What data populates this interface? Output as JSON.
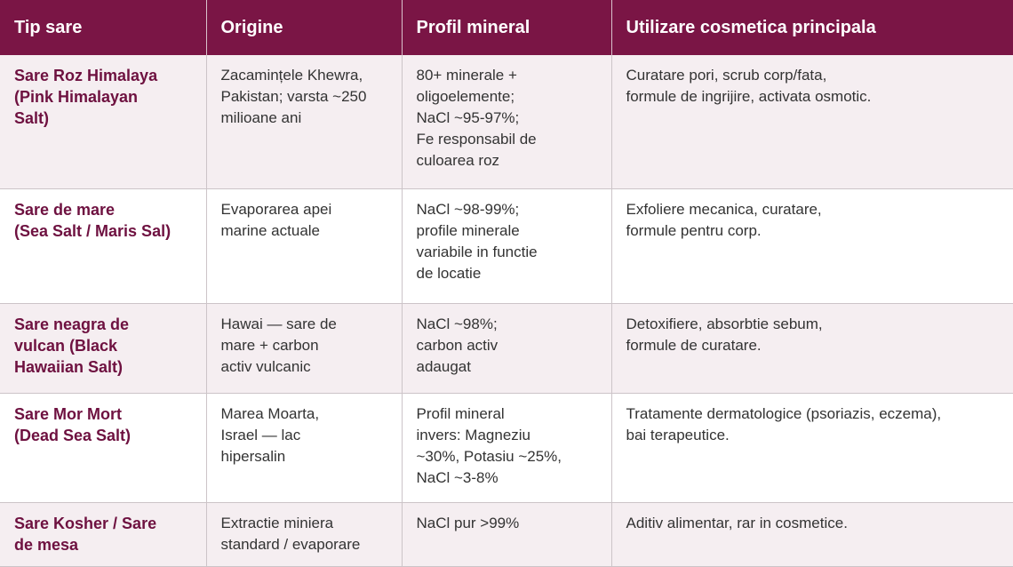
{
  "headers": [
    "Tip sare",
    "Origine",
    "Profil mineral",
    "Utilizare cosmetica principala"
  ],
  "rows": [
    {
      "type": "Sare Roz Himalaya\n(Pink Himalayan\nSalt)",
      "origin": "Zacamințele Khewra,\nPakistan; varsta ~250\nmilioane ani",
      "mineral": "80+ minerale +\noligoelemente;\nNaCl ~95-97%;\nFe responsabil de\nculoarea roz",
      "use": "Curatare pori, scrub corp/fata,\nformule de ingrijire, activata osmotic."
    },
    {
      "type": "Sare de mare\n(Sea Salt / Maris Sal)",
      "origin": "Evaporarea apei\nmarine actuale",
      "mineral": "NaCl ~98-99%;\nprofile minerale\nvariabile in functie\nde locatie",
      "use": "Exfoliere mecanica, curatare,\nformule pentru corp."
    },
    {
      "type": "Sare neagra de\nvulcan (Black\nHawaiian Salt)",
      "origin": "Hawai — sare de\nmare + carbon\nactiv vulcanic",
      "mineral": "NaCl ~98%;\ncarbon activ\nadaugat",
      "use": "Detoxifiere, absorbtie sebum,\nformule de curatare."
    },
    {
      "type": "Sare Mor Mort\n(Dead Sea Salt)",
      "origin": "Marea Moarta,\nIsrael — lac\nhipersalin",
      "mineral": "Profil mineral\ninvers: Magneziu\n~30%, Potasiu ~25%,\nNaCl ~3-8%",
      "use": "Tratamente dermatologice (psoriazis, eczema),\nbai terapeutice."
    },
    {
      "type": "Sare Kosher / Sare\nde mesa",
      "origin": "Extractie miniera\nstandard / evaporare",
      "mineral": "NaCl pur >99%",
      "use": "Aditiv alimentar, rar in cosmetice."
    }
  ]
}
